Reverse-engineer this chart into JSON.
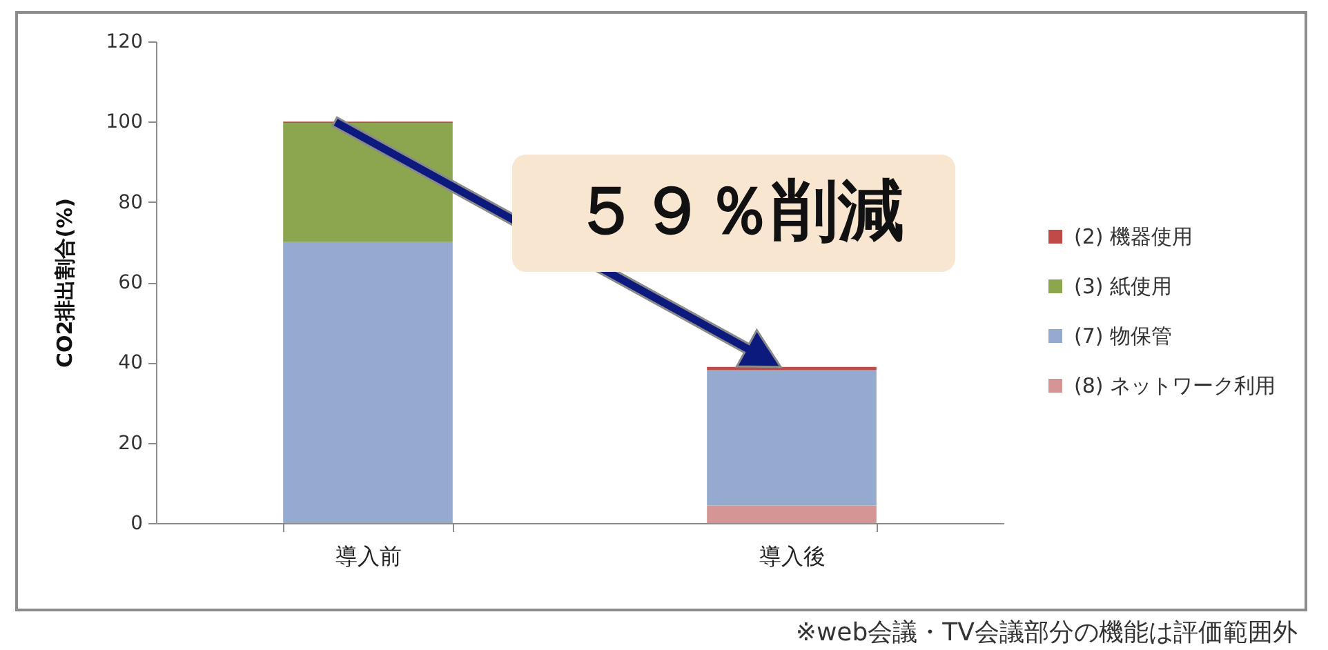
{
  "chart_data": {
    "type": "bar",
    "stacked": true,
    "categories": [
      "導入前",
      "導入後"
    ],
    "series": [
      {
        "name": "(8) ネットワーク利用",
        "color": "#d49594",
        "values": [
          null,
          4.4
        ]
      },
      {
        "name": "(7) 物保管",
        "color": "#95aacf",
        "values": [
          70,
          33.7
        ]
      },
      {
        "name": "(3) 紙使用",
        "color": "#8ba64f",
        "values": [
          29.7,
          null
        ]
      },
      {
        "name": "(2) 機器使用",
        "color": "#be4b48",
        "values": [
          0.3,
          0.8
        ]
      }
    ],
    "ylabel": "CO2排出割合(%)",
    "ylim": [
      0,
      120
    ],
    "yticks": [
      0,
      20,
      40,
      60,
      80,
      100,
      120
    ],
    "legend": "right",
    "annotations": [
      "５９％削減",
      "※web会議・TV会議部分の機能は評価範囲外"
    ]
  }
}
